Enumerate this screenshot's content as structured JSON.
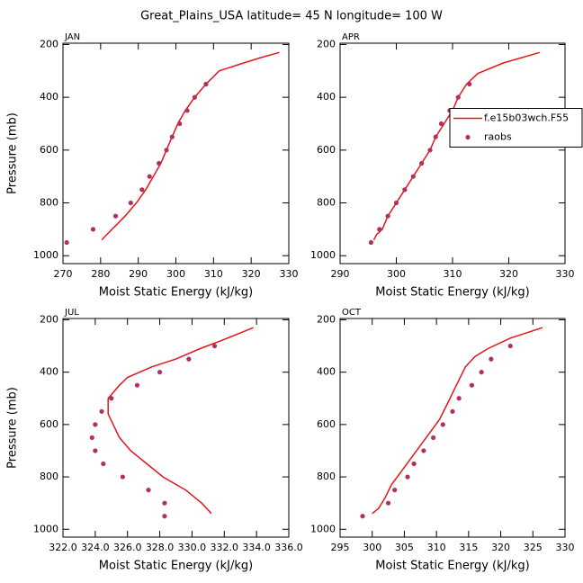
{
  "title": "Great_Plains_USA  latitude= 45 N longitude= 100 W",
  "chart_data": [
    {
      "type": "line",
      "panel": "JAN",
      "xlabel": "Moist Static Energy (kJ/kg)",
      "ylabel": "Pressure (mb)",
      "xlim": [
        270,
        330
      ],
      "xticks": [
        270,
        280,
        290,
        300,
        310,
        320,
        330
      ],
      "ylim": [
        1030,
        195
      ],
      "yticks": [
        200,
        400,
        600,
        800,
        1000
      ],
      "series": [
        {
          "color": "#e3161c",
          "marker": "line",
          "x": [
            280.3,
            283,
            286.5,
            289.5,
            292,
            294,
            296,
            297.5,
            299,
            300.5,
            302.5,
            305,
            308,
            311.5,
            318,
            322.5,
            327.5
          ],
          "y": [
            940,
            900,
            850,
            800,
            750,
            700,
            650,
            600,
            550,
            500,
            450,
            400,
            350,
            300,
            270,
            250,
            230
          ]
        },
        {
          "color": "#b0305e",
          "marker": "dot",
          "x": [
            271,
            278,
            284,
            288,
            291,
            293,
            295.5,
            297.5,
            299,
            301,
            303,
            305,
            308
          ],
          "y": [
            950,
            900,
            850,
            800,
            750,
            700,
            650,
            600,
            550,
            500,
            450,
            400,
            350
          ]
        }
      ]
    },
    {
      "type": "line",
      "panel": "APR",
      "xlabel": "Moist Static Energy (kJ/kg)",
      "xlim": [
        290,
        330
      ],
      "xticks": [
        290,
        300,
        310,
        320,
        330
      ],
      "ylim": [
        1030,
        195
      ],
      "yticks": [
        200,
        400,
        600,
        800,
        1000
      ],
      "legend": "right",
      "series": [
        {
          "name": "f.e15b03wch.F55",
          "color": "#e3161c",
          "marker": "line",
          "x": [
            296,
            296.5,
            297.5,
            298.5,
            300,
            301.5,
            303,
            304.5,
            306,
            307,
            308.5,
            310,
            311,
            312.5,
            314.5,
            319,
            325.5
          ],
          "y": [
            940,
            920,
            900,
            850,
            800,
            750,
            700,
            650,
            600,
            550,
            500,
            450,
            400,
            350,
            310,
            270,
            230
          ]
        },
        {
          "name": "raobs",
          "color": "#b0305e",
          "marker": "dot",
          "x": [
            295.5,
            297,
            298.5,
            300,
            301.5,
            303,
            304.5,
            306,
            307,
            308,
            309.5,
            311,
            313
          ],
          "y": [
            950,
            900,
            850,
            800,
            750,
            700,
            650,
            600,
            550,
            500,
            450,
            400,
            350
          ]
        }
      ]
    },
    {
      "type": "line",
      "panel": "JUL",
      "xlabel": "Moist Static Energy (kJ/kg)",
      "ylabel": "Pressure (mb)",
      "xlim": [
        322,
        336
      ],
      "xticks": [
        {
          "value": 322,
          "label": "322.0"
        },
        {
          "value": 324,
          "label": "324.0"
        },
        {
          "value": 326,
          "label": "326.0"
        },
        {
          "value": 328,
          "label": "328.0"
        },
        {
          "value": 330,
          "label": "330.0"
        },
        {
          "value": 332,
          "label": "332.0"
        },
        {
          "value": 334,
          "label": "334.0"
        },
        {
          "value": 336,
          "label": "336.0"
        }
      ],
      "ylim": [
        1030,
        195
      ],
      "yticks": [
        200,
        400,
        600,
        800,
        1000
      ],
      "series": [
        {
          "color": "#e3161c",
          "marker": "line",
          "x": [
            331.2,
            330.6,
            329.6,
            328.2,
            327.2,
            326.2,
            325.5,
            324.8,
            324.8,
            325.5,
            326,
            327.5,
            329,
            330.5,
            331.8,
            333.8
          ],
          "y": [
            940,
            900,
            850,
            800,
            750,
            700,
            650,
            560,
            500,
            450,
            420,
            380,
            350,
            310,
            280,
            230
          ]
        },
        {
          "color": "#b0305e",
          "marker": "dot",
          "x": [
            328.3,
            328.3,
            327.3,
            325.7,
            324.5,
            324.0,
            323.8,
            324.0,
            324.4,
            325.0,
            326.6,
            328.0,
            329.8,
            331.4
          ],
          "y": [
            950,
            900,
            850,
            800,
            750,
            700,
            650,
            600,
            550,
            500,
            450,
            400,
            350,
            300
          ]
        }
      ]
    },
    {
      "type": "line",
      "panel": "OCT",
      "xlabel": "Moist Static Energy (kJ/kg)",
      "xlim": [
        295,
        330
      ],
      "xticks": [
        295,
        300,
        305,
        310,
        315,
        320,
        325,
        330
      ],
      "ylim": [
        1030,
        195
      ],
      "yticks": [
        200,
        400,
        600,
        800,
        1000
      ],
      "series": [
        {
          "color": "#e3161c",
          "marker": "line",
          "x": [
            300,
            301,
            302,
            303,
            304.5,
            306,
            307.5,
            309,
            310.5,
            311.5,
            312.5,
            313.5,
            314.5,
            316,
            318,
            321.5,
            326.5
          ],
          "y": [
            940,
            920,
            880,
            830,
            780,
            730,
            680,
            630,
            580,
            530,
            480,
            430,
            380,
            340,
            310,
            270,
            230
          ]
        },
        {
          "color": "#b0305e",
          "marker": "dot",
          "x": [
            298.5,
            302.5,
            303.5,
            305.5,
            306.5,
            308,
            309.5,
            311,
            312.5,
            313.5,
            315.5,
            317,
            318.5,
            321.5
          ],
          "y": [
            950,
            900,
            850,
            800,
            750,
            700,
            650,
            600,
            550,
            500,
            450,
            400,
            350,
            300
          ]
        }
      ]
    }
  ]
}
